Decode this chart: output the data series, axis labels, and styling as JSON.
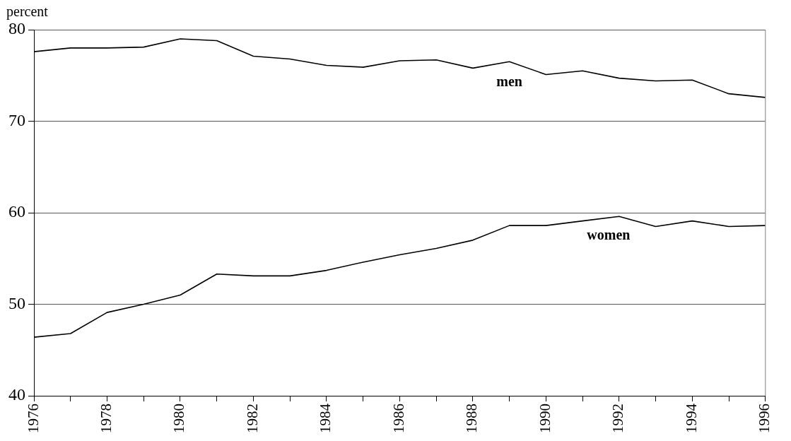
{
  "chart_data": {
    "type": "line",
    "ylabel": "percent",
    "x": [
      1976,
      1977,
      1978,
      1979,
      1980,
      1981,
      1982,
      1983,
      1984,
      1985,
      1986,
      1987,
      1988,
      1989,
      1990,
      1991,
      1992,
      1993,
      1994,
      1995,
      1996
    ],
    "series": [
      {
        "name": "men",
        "color": "#000000",
        "values": [
          77.6,
          78.0,
          78.0,
          78.1,
          79.0,
          78.8,
          77.1,
          76.8,
          76.1,
          75.9,
          76.6,
          76.7,
          75.8,
          76.5,
          75.1,
          75.5,
          74.7,
          74.4,
          74.5,
          73.0,
          72.6
        ]
      },
      {
        "name": "women",
        "color": "#000000",
        "values": [
          46.4,
          46.8,
          49.1,
          50.0,
          51.0,
          53.3,
          53.1,
          53.1,
          53.7,
          54.6,
          55.4,
          56.1,
          57.0,
          58.6,
          58.6,
          59.1,
          59.6,
          58.5,
          59.1,
          58.5,
          58.6
        ]
      }
    ],
    "xlim": [
      1976,
      1996
    ],
    "xticks": [
      1976,
      {
        "value": 1977,
        "label": null
      },
      1978,
      {
        "value": 1979,
        "label": null
      },
      1980,
      {
        "value": 1981,
        "label": null
      },
      1982,
      {
        "value": 1983,
        "label": null
      },
      1984,
      {
        "value": 1985,
        "label": null
      },
      1986,
      {
        "value": 1987,
        "label": null
      },
      1988,
      {
        "value": 1989,
        "label": null
      },
      1990,
      {
        "value": 1991,
        "label": null
      },
      1992,
      {
        "value": 1993,
        "label": null
      },
      1994,
      {
        "value": 1995,
        "label": null
      },
      1996
    ],
    "ylim": [
      40,
      80
    ],
    "yticks": [
      40,
      50,
      60,
      70,
      80
    ],
    "grid": "y",
    "legend": false,
    "marker": "none",
    "line_style": "solid"
  }
}
